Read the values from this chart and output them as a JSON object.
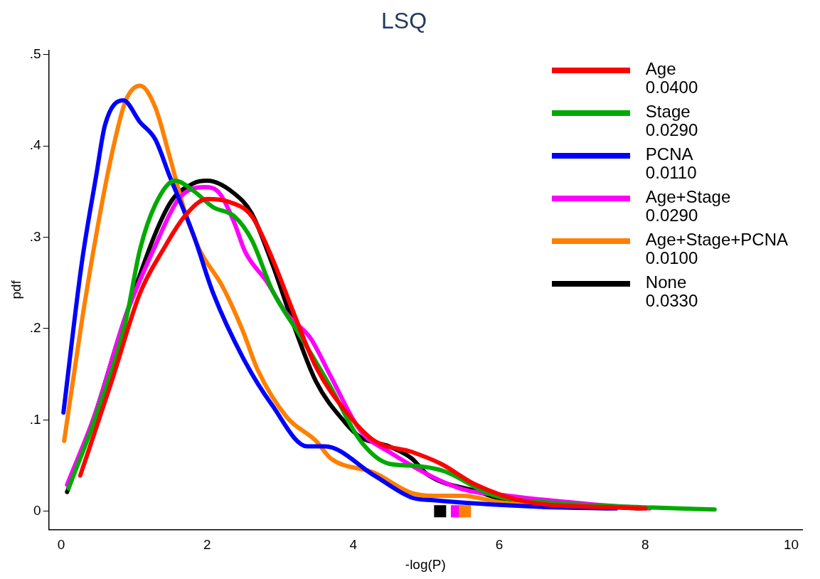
{
  "chart_data": {
    "type": "line",
    "title": "LSQ",
    "xlabel": "-log(P)",
    "ylabel": "pdf",
    "xlim": [
      -0.17,
      10.15
    ],
    "ylim": [
      -0.02,
      0.505
    ],
    "xticks": [
      0,
      2,
      4,
      6,
      8,
      10
    ],
    "yticks": [
      0,
      {
        "value": 0.1,
        "label": ".1"
      },
      {
        "value": 0.2,
        "label": ".2"
      },
      {
        "value": 0.3,
        "label": ".3"
      },
      {
        "value": 0.4,
        "label": ".4"
      },
      {
        "value": 0.5,
        "label": ".5"
      }
    ],
    "grid": false,
    "legend": "top right",
    "line_style": "solid",
    "marker": "none",
    "series": [
      {
        "name": "Age\n0.0400",
        "color": "#ff0000",
        "x": [
          0.26,
          0.69,
          1.08,
          1.4,
          1.69,
          2.0,
          2.29,
          2.61,
          2.89,
          3.17,
          3.49,
          3.89,
          4.29,
          4.8,
          5.2,
          5.68,
          6.34,
          7.65,
          8.0
        ],
        "values": [
          0.039,
          0.142,
          0.239,
          0.287,
          0.323,
          0.342,
          0.339,
          0.323,
          0.277,
          0.22,
          0.158,
          0.11,
          0.077,
          0.065,
          0.052,
          0.029,
          0.011,
          0.004,
          0.003
        ]
      },
      {
        "name": "Stage\n0.0290",
        "color": "#00aa00",
        "x": [
          0.1,
          0.48,
          0.88,
          1.08,
          1.29,
          1.56,
          1.81,
          2.08,
          2.37,
          2.61,
          2.89,
          3.29,
          3.69,
          4.1,
          4.49,
          4.8,
          5.24,
          5.9,
          6.78,
          8.1,
          8.95
        ],
        "values": [
          0.025,
          0.105,
          0.207,
          0.287,
          0.336,
          0.362,
          0.351,
          0.333,
          0.323,
          0.297,
          0.242,
          0.19,
          0.136,
          0.077,
          0.052,
          0.05,
          0.044,
          0.018,
          0.009,
          0.004,
          0.002
        ]
      },
      {
        "name": "PCNA\n0.0110",
        "color": "#0000ff",
        "x": [
          0.03,
          0.28,
          0.48,
          0.6,
          0.85,
          1.08,
          1.29,
          1.48,
          1.81,
          2.08,
          2.49,
          2.89,
          3.37,
          3.61,
          4.29,
          4.8,
          5.1,
          6.5,
          7.6
        ],
        "values": [
          0.108,
          0.271,
          0.368,
          0.423,
          0.45,
          0.426,
          0.407,
          0.368,
          0.303,
          0.239,
          0.168,
          0.116,
          0.071,
          0.071,
          0.039,
          0.015,
          0.012,
          0.005,
          0.003
        ]
      },
      {
        "name": "Age+Stage\n0.0290",
        "color": "#ff00ff",
        "x": [
          0.08,
          0.48,
          0.88,
          1.29,
          1.61,
          1.96,
          2.17,
          2.37,
          2.52,
          2.81,
          3.09,
          3.41,
          3.69,
          4.1,
          4.49,
          5.46,
          6.12,
          7.21,
          8.06
        ],
        "values": [
          0.029,
          0.11,
          0.213,
          0.291,
          0.342,
          0.355,
          0.348,
          0.316,
          0.284,
          0.252,
          0.216,
          0.19,
          0.148,
          0.088,
          0.065,
          0.025,
          0.017,
          0.008,
          0.003
        ]
      },
      {
        "name": "Age+Stage+PCNA\n0.0100",
        "color": "#ff8000",
        "x": [
          0.04,
          0.28,
          0.48,
          0.69,
          0.88,
          1.08,
          1.29,
          1.48,
          1.69,
          1.89,
          2.21,
          2.49,
          2.69,
          3.09,
          3.49,
          3.69,
          4.29,
          4.8,
          5.1,
          5.5,
          6.0,
          7.0,
          7.6
        ],
        "values": [
          0.077,
          0.207,
          0.303,
          0.39,
          0.449,
          0.466,
          0.442,
          0.39,
          0.329,
          0.287,
          0.246,
          0.197,
          0.155,
          0.103,
          0.077,
          0.058,
          0.042,
          0.02,
          0.017,
          0.017,
          0.01,
          0.005,
          0.005
        ]
      },
      {
        "name": "None\n0.0330",
        "color": "#000000",
        "x": [
          0.08,
          0.48,
          0.88,
          1.48,
          1.81,
          2.0,
          2.37,
          2.61,
          2.89,
          3.17,
          3.49,
          3.89,
          4.1,
          4.49,
          4.8,
          5.02,
          5.68,
          6.34,
          7.21,
          7.94
        ],
        "values": [
          0.021,
          0.11,
          0.213,
          0.336,
          0.359,
          0.362,
          0.348,
          0.326,
          0.271,
          0.207,
          0.142,
          0.097,
          0.081,
          0.071,
          0.058,
          0.04,
          0.022,
          0.008,
          0.006,
          0.003
        ]
      },
      {
        "type": "scatter",
        "marker": "square",
        "colors": [
          "#000000",
          "#ff00ff",
          "#ff8000"
        ],
        "x": [
          5.19,
          5.42,
          5.53
        ],
        "values": [
          0,
          0,
          0
        ]
      }
    ]
  }
}
